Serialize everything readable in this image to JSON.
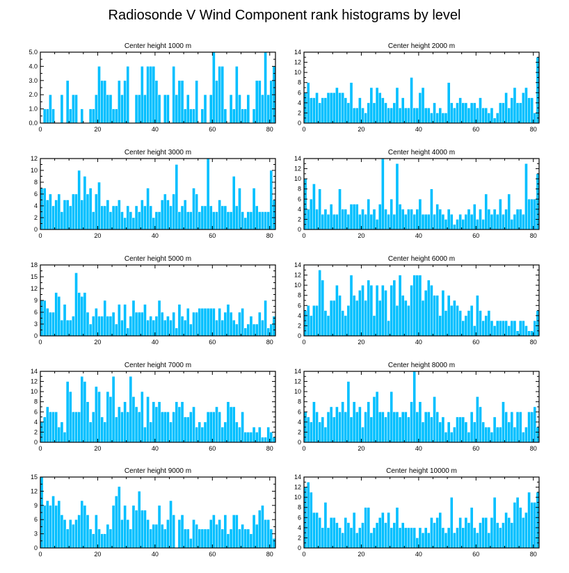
{
  "title": "Radiosonde V Wind Component rank histograms by level",
  "colors": {
    "bar": "#00bfff",
    "axis": "#000000",
    "background": "#ffffff"
  },
  "chart_data": [
    {
      "type": "bar",
      "title": "Center height 1000 m",
      "xlim": [
        0,
        82
      ],
      "ylim": [
        0,
        5
      ],
      "xticks": [
        0,
        20,
        40,
        60,
        80
      ],
      "yticks": [
        0,
        1,
        2,
        3,
        4,
        5
      ],
      "ytick_labels": [
        "0.0",
        "1.0",
        "2.0",
        "3.0",
        "4.0",
        "5.0"
      ],
      "values": [
        0,
        1,
        1,
        2,
        1,
        0,
        0,
        2,
        0,
        3,
        1,
        2,
        2,
        0,
        1,
        0,
        0,
        1,
        1,
        2,
        4,
        3,
        3,
        2,
        2,
        1,
        1,
        3,
        2,
        3,
        4,
        0,
        0,
        2,
        2,
        4,
        2,
        4,
        4,
        4,
        3,
        2,
        0,
        2,
        2,
        0,
        4,
        2,
        3,
        3,
        1,
        2,
        1,
        1,
        3,
        0,
        1,
        2,
        0,
        2,
        5,
        3,
        4,
        4,
        1,
        0,
        2,
        1,
        4,
        2,
        1,
        1,
        2,
        0,
        1,
        3,
        3,
        2,
        5,
        2,
        3,
        4
      ]
    },
    {
      "type": "bar",
      "title": "Center height 2000 m",
      "xlim": [
        0,
        82
      ],
      "ylim": [
        0,
        14
      ],
      "xticks": [
        0,
        20,
        40,
        60,
        80
      ],
      "yticks": [
        0,
        2,
        4,
        6,
        8,
        10,
        12,
        14
      ],
      "ytick_labels": [
        "0",
        "2",
        "4",
        "6",
        "8",
        "10",
        "12",
        "14"
      ],
      "values": [
        6,
        8,
        5,
        5,
        6,
        4,
        5,
        5,
        6,
        6,
        6,
        7,
        6,
        6,
        5,
        4,
        8,
        3,
        3,
        5,
        3,
        2,
        4,
        7,
        4,
        7,
        6,
        5,
        4,
        3,
        3,
        4,
        7,
        3,
        5,
        3,
        3,
        9,
        3,
        3,
        6,
        7,
        3,
        3,
        2,
        4,
        2,
        3,
        2,
        2,
        8,
        4,
        3,
        4,
        5,
        4,
        4,
        3,
        4,
        4,
        3,
        5,
        3,
        3,
        2,
        3,
        1,
        2,
        4,
        4,
        6,
        3,
        5,
        7,
        4,
        4,
        6,
        7,
        5,
        5,
        2,
        13
      ]
    },
    {
      "type": "bar",
      "title": "Center height 3000 m",
      "xlim": [
        0,
        82
      ],
      "ylim": [
        0,
        12
      ],
      "xticks": [
        0,
        20,
        40,
        60,
        80
      ],
      "yticks": [
        0,
        2,
        4,
        6,
        8,
        10,
        12
      ],
      "ytick_labels": [
        "0",
        "2",
        "4",
        "6",
        "8",
        "10",
        "12"
      ],
      "values": [
        7,
        7,
        5,
        6,
        4,
        5,
        6,
        3,
        5,
        5,
        4,
        6,
        6,
        10,
        5,
        9,
        6,
        7,
        3,
        6,
        8,
        4,
        4,
        5,
        3,
        4,
        4,
        5,
        3,
        2,
        4,
        3,
        2,
        4,
        3,
        5,
        4,
        7,
        4,
        2,
        3,
        3,
        5,
        6,
        5,
        4,
        6,
        11,
        3,
        4,
        5,
        3,
        3,
        7,
        6,
        3,
        4,
        4,
        12,
        4,
        3,
        3,
        5,
        4,
        4,
        3,
        3,
        9,
        4,
        7,
        3,
        2,
        3,
        3,
        7,
        4,
        3,
        3,
        3,
        3,
        10,
        5
      ]
    },
    {
      "type": "bar",
      "title": "Center height 4000 m",
      "xlim": [
        0,
        82
      ],
      "ylim": [
        0,
        14
      ],
      "xticks": [
        0,
        20,
        40,
        60,
        80
      ],
      "yticks": [
        0,
        2,
        4,
        6,
        8,
        10,
        12,
        14
      ],
      "ytick_labels": [
        "0",
        "2",
        "4",
        "6",
        "8",
        "10",
        "12",
        "14"
      ],
      "values": [
        10,
        4,
        6,
        9,
        4,
        8,
        3,
        4,
        3,
        5,
        3,
        3,
        8,
        4,
        4,
        3,
        5,
        5,
        5,
        3,
        4,
        3,
        6,
        3,
        4,
        2,
        5,
        14,
        4,
        3,
        6,
        3,
        13,
        5,
        4,
        3,
        4,
        4,
        3,
        4,
        6,
        3,
        3,
        3,
        8,
        3,
        5,
        4,
        3,
        2,
        4,
        3,
        1,
        2,
        3,
        2,
        3,
        4,
        3,
        5,
        2,
        4,
        2,
        7,
        4,
        3,
        4,
        3,
        6,
        3,
        4,
        7,
        2,
        3,
        4,
        4,
        3,
        13,
        6,
        6,
        6,
        11
      ]
    },
    {
      "type": "bar",
      "title": "Center height 5000 m",
      "xlim": [
        0,
        82
      ],
      "ylim": [
        0,
        18
      ],
      "xticks": [
        0,
        20,
        40,
        60,
        80
      ],
      "yticks": [
        0,
        3,
        6,
        9,
        12,
        15,
        18
      ],
      "ytick_labels": [
        "0",
        "3",
        "6",
        "9",
        "12",
        "15",
        "18"
      ],
      "values": [
        9,
        9,
        7,
        6,
        6,
        11,
        10,
        4,
        8,
        4,
        4,
        5,
        16,
        11,
        10,
        11,
        6,
        3,
        5,
        7,
        5,
        5,
        9,
        5,
        5,
        6,
        3,
        8,
        4,
        8,
        2,
        5,
        9,
        6,
        6,
        6,
        8,
        4,
        5,
        4,
        5,
        9,
        6,
        4,
        5,
        4,
        6,
        2,
        8,
        5,
        4,
        7,
        3,
        6,
        6,
        7,
        7,
        7,
        7,
        7,
        7,
        4,
        7,
        4,
        6,
        8,
        6,
        4,
        3,
        6,
        7,
        2,
        3,
        5,
        3,
        3,
        6,
        4,
        9,
        2,
        3,
        5
      ]
    },
    {
      "type": "bar",
      "title": "Center height 6000 m",
      "xlim": [
        0,
        82
      ],
      "ylim": [
        0,
        14
      ],
      "xticks": [
        0,
        20,
        40,
        60,
        80
      ],
      "yticks": [
        0,
        2,
        4,
        6,
        8,
        10,
        12,
        14
      ],
      "ytick_labels": [
        "0",
        "2",
        "4",
        "6",
        "8",
        "10",
        "12",
        "14"
      ],
      "values": [
        5,
        6,
        4,
        6,
        6,
        13,
        11,
        5,
        4,
        7,
        7,
        10,
        8,
        5,
        4,
        6,
        12,
        8,
        7,
        9,
        10,
        7,
        11,
        10,
        4,
        10,
        7,
        10,
        9,
        3,
        10,
        11,
        6,
        12,
        8,
        7,
        6,
        10,
        12,
        12,
        12,
        7,
        9,
        11,
        10,
        8,
        8,
        4,
        9,
        5,
        8,
        6,
        7,
        6,
        5,
        3,
        4,
        5,
        6,
        2,
        8,
        5,
        3,
        4,
        5,
        3,
        2,
        3,
        3,
        3,
        3,
        2,
        3,
        3,
        1,
        3,
        3,
        2,
        1,
        1,
        3,
        5
      ]
    },
    {
      "type": "bar",
      "title": "Center height 7000 m",
      "xlim": [
        0,
        82
      ],
      "ylim": [
        0,
        14
      ],
      "xticks": [
        0,
        20,
        40,
        60,
        80
      ],
      "yticks": [
        0,
        2,
        4,
        6,
        8,
        10,
        12,
        14
      ],
      "ytick_labels": [
        "0",
        "2",
        "4",
        "6",
        "8",
        "10",
        "12",
        "14"
      ],
      "values": [
        4,
        5,
        7,
        6,
        6,
        6,
        3,
        4,
        2,
        12,
        10,
        6,
        6,
        6,
        13,
        12,
        8,
        4,
        6,
        11,
        10,
        5,
        4,
        10,
        9,
        13,
        5,
        7,
        6,
        8,
        6,
        13,
        9,
        7,
        6,
        10,
        3,
        9,
        4,
        8,
        7,
        8,
        6,
        6,
        6,
        4,
        6,
        8,
        7,
        8,
        5,
        5,
        6,
        7,
        3,
        4,
        3,
        4,
        6,
        6,
        6,
        7,
        6,
        3,
        4,
        8,
        7,
        7,
        4,
        3,
        6,
        2,
        2,
        2,
        3,
        2,
        3,
        1,
        1,
        3,
        2,
        1
      ]
    },
    {
      "type": "bar",
      "title": "Center height 8000 m",
      "xlim": [
        0,
        82
      ],
      "ylim": [
        0,
        14
      ],
      "xticks": [
        0,
        20,
        40,
        60,
        80
      ],
      "yticks": [
        0,
        2,
        4,
        6,
        8,
        10,
        12,
        14
      ],
      "ytick_labels": [
        "0",
        "2",
        "4",
        "6",
        "8",
        "10",
        "12",
        "14"
      ],
      "values": [
        6,
        5,
        4,
        8,
        6,
        4,
        5,
        3,
        6,
        7,
        5,
        7,
        6,
        8,
        6,
        12,
        5,
        8,
        6,
        7,
        3,
        6,
        8,
        5,
        9,
        10,
        6,
        6,
        5,
        6,
        10,
        6,
        6,
        5,
        6,
        6,
        5,
        8,
        14,
        6,
        8,
        4,
        6,
        6,
        5,
        9,
        6,
        4,
        5,
        2,
        4,
        2,
        3,
        5,
        5,
        5,
        4,
        2,
        6,
        4,
        9,
        7,
        4,
        3,
        3,
        2,
        5,
        3,
        3,
        8,
        6,
        4,
        6,
        3,
        6,
        6,
        2,
        3,
        6,
        6,
        7,
        3
      ]
    },
    {
      "type": "bar",
      "title": "Center height 9000 m",
      "xlim": [
        0,
        82
      ],
      "ylim": [
        0,
        15
      ],
      "xticks": [
        0,
        20,
        40,
        60,
        80
      ],
      "yticks": [
        0,
        3,
        6,
        9,
        12,
        15
      ],
      "ytick_labels": [
        "0",
        "3",
        "6",
        "9",
        "12",
        "15"
      ],
      "values": [
        15,
        9,
        10,
        9,
        11,
        9,
        10,
        7,
        6,
        4,
        6,
        5,
        6,
        7,
        10,
        9,
        7,
        4,
        3,
        7,
        4,
        3,
        3,
        5,
        4,
        9,
        11,
        13,
        6,
        9,
        6,
        4,
        9,
        8,
        12,
        8,
        8,
        6,
        4,
        5,
        5,
        9,
        5,
        4,
        6,
        10,
        7,
        0,
        6,
        7,
        4,
        4,
        2,
        6,
        5,
        4,
        4,
        4,
        4,
        6,
        7,
        5,
        6,
        4,
        7,
        3,
        4,
        7,
        7,
        4,
        5,
        4,
        4,
        3,
        7,
        5,
        8,
        9,
        6,
        6,
        4,
        2
      ]
    },
    {
      "type": "bar",
      "title": "Center height 10000 m",
      "xlim": [
        0,
        82
      ],
      "ylim": [
        0,
        14
      ],
      "xticks": [
        0,
        20,
        40,
        60,
        80
      ],
      "yticks": [
        0,
        2,
        4,
        6,
        8,
        10,
        12,
        14
      ],
      "ytick_labels": [
        "0",
        "2",
        "4",
        "6",
        "8",
        "10",
        "12",
        "14"
      ],
      "values": [
        12,
        13,
        11,
        7,
        7,
        6,
        4,
        9,
        4,
        6,
        6,
        5,
        4,
        3,
        6,
        5,
        4,
        7,
        3,
        4,
        5,
        8,
        8,
        3,
        4,
        5,
        6,
        7,
        5,
        7,
        4,
        5,
        8,
        4,
        5,
        4,
        4,
        4,
        4,
        2,
        4,
        3,
        4,
        3,
        6,
        5,
        6,
        7,
        4,
        3,
        4,
        10,
        3,
        4,
        6,
        4,
        6,
        5,
        8,
        4,
        3,
        5,
        6,
        6,
        3,
        6,
        10,
        5,
        4,
        5,
        7,
        6,
        5,
        9,
        10,
        8,
        6,
        7,
        11,
        9,
        9,
        11
      ]
    }
  ]
}
